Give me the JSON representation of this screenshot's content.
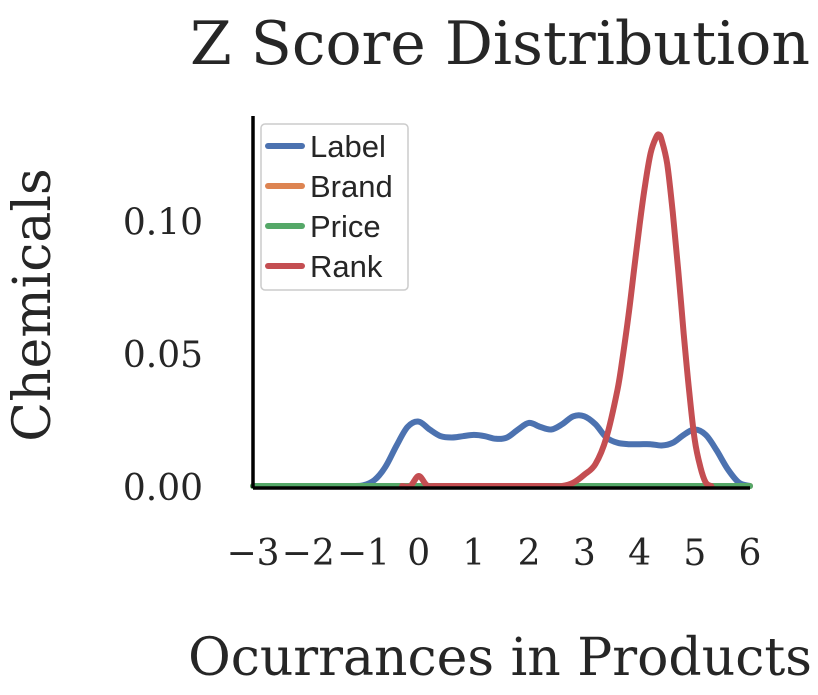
{
  "chart_data": {
    "type": "line",
    "title": "Z Score Distribution",
    "xlabel": "Ocurrances in Products",
    "ylabel": "Chemicals",
    "xlim": [
      -3,
      6
    ],
    "ylim": [
      0,
      0.14
    ],
    "x_ticks": [
      "−3",
      "−2",
      "−1",
      "0",
      "1",
      "2",
      "3",
      "4",
      "5",
      "6"
    ],
    "x_tick_values": [
      -3,
      -2,
      -1,
      0,
      1,
      2,
      3,
      4,
      5,
      6
    ],
    "y_ticks": [
      "0.00",
      "0.05",
      "0.10"
    ],
    "y_tick_values": [
      0,
      0.05,
      0.1
    ],
    "grid": false,
    "legend_position": "top-left",
    "series": [
      {
        "name": "Label",
        "color": "#4c72b0",
        "x": [
          -1.2,
          -1.0,
          -0.8,
          -0.6,
          -0.4,
          -0.2,
          0.0,
          0.2,
          0.4,
          0.6,
          0.8,
          1.0,
          1.2,
          1.4,
          1.6,
          1.8,
          2.0,
          2.2,
          2.4,
          2.6,
          2.8,
          3.0,
          3.2,
          3.4,
          3.6,
          3.8,
          4.0,
          4.2,
          4.4,
          4.6,
          4.8,
          5.0,
          5.2,
          5.4,
          5.6,
          5.8,
          6.0
        ],
        "y": [
          0.0,
          0.001,
          0.003,
          0.008,
          0.016,
          0.023,
          0.025,
          0.022,
          0.0195,
          0.019,
          0.0195,
          0.02,
          0.0195,
          0.0185,
          0.019,
          0.022,
          0.0245,
          0.023,
          0.022,
          0.024,
          0.027,
          0.027,
          0.024,
          0.019,
          0.017,
          0.0165,
          0.0165,
          0.0165,
          0.016,
          0.017,
          0.02,
          0.022,
          0.02,
          0.014,
          0.007,
          0.002,
          0.0
        ]
      },
      {
        "name": "Brand",
        "color": "#dd8452",
        "x": [
          -3,
          6
        ],
        "y": [
          0.0,
          0.0
        ]
      },
      {
        "name": "Price",
        "color": "#55a868",
        "x": [
          -3,
          6
        ],
        "y": [
          0.0,
          0.0
        ]
      },
      {
        "name": "Rank",
        "color": "#c44e52",
        "x": [
          -0.3,
          -0.15,
          0.0,
          0.15,
          0.3,
          0.5,
          2.3,
          2.6,
          2.8,
          3.0,
          3.2,
          3.4,
          3.6,
          3.7,
          3.8,
          3.9,
          4.0,
          4.1,
          4.2,
          4.3,
          4.35,
          4.4,
          4.5,
          4.6,
          4.7,
          4.8,
          4.9,
          5.0,
          5.1,
          5.2,
          5.3
        ],
        "y": [
          0.0,
          0.0005,
          0.0045,
          0.001,
          0.0,
          0.0,
          0.0,
          0.0005,
          0.002,
          0.005,
          0.009,
          0.019,
          0.037,
          0.05,
          0.065,
          0.082,
          0.099,
          0.114,
          0.126,
          0.132,
          0.133,
          0.131,
          0.122,
          0.104,
          0.082,
          0.058,
          0.036,
          0.018,
          0.008,
          0.002,
          0.0
        ]
      }
    ]
  }
}
